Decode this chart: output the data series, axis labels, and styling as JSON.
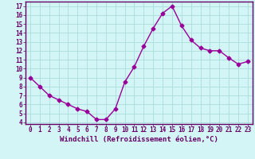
{
  "x": [
    0,
    1,
    2,
    3,
    4,
    5,
    6,
    7,
    8,
    9,
    10,
    11,
    12,
    13,
    14,
    15,
    16,
    17,
    18,
    19,
    20,
    21,
    22,
    23
  ],
  "y": [
    9.0,
    8.0,
    7.0,
    6.5,
    6.0,
    5.5,
    5.2,
    4.3,
    4.3,
    5.5,
    8.5,
    10.2,
    12.5,
    14.5,
    16.2,
    17.0,
    14.8,
    13.2,
    12.3,
    12.0,
    12.0,
    11.2,
    10.5,
    10.8
  ],
  "line_color": "#990099",
  "marker": "D",
  "marker_size": 2.5,
  "background_color": "#d4f5f5",
  "grid_color": "#aadddd",
  "xlabel": "Windchill (Refroidissement éolien,°C)",
  "xlabel_color": "#660066",
  "tick_color": "#660066",
  "spine_color": "#660066",
  "ylim": [
    4,
    17
  ],
  "xlim": [
    -0.5,
    23.5
  ],
  "yticks": [
    4,
    5,
    6,
    7,
    8,
    9,
    10,
    11,
    12,
    13,
    14,
    15,
    16,
    17
  ],
  "xticks": [
    0,
    1,
    2,
    3,
    4,
    5,
    6,
    7,
    8,
    9,
    10,
    11,
    12,
    13,
    14,
    15,
    16,
    17,
    18,
    19,
    20,
    21,
    22,
    23
  ],
  "xlabel_fontsize": 6.5,
  "tick_fontsize": 5.5,
  "linewidth": 1.0
}
